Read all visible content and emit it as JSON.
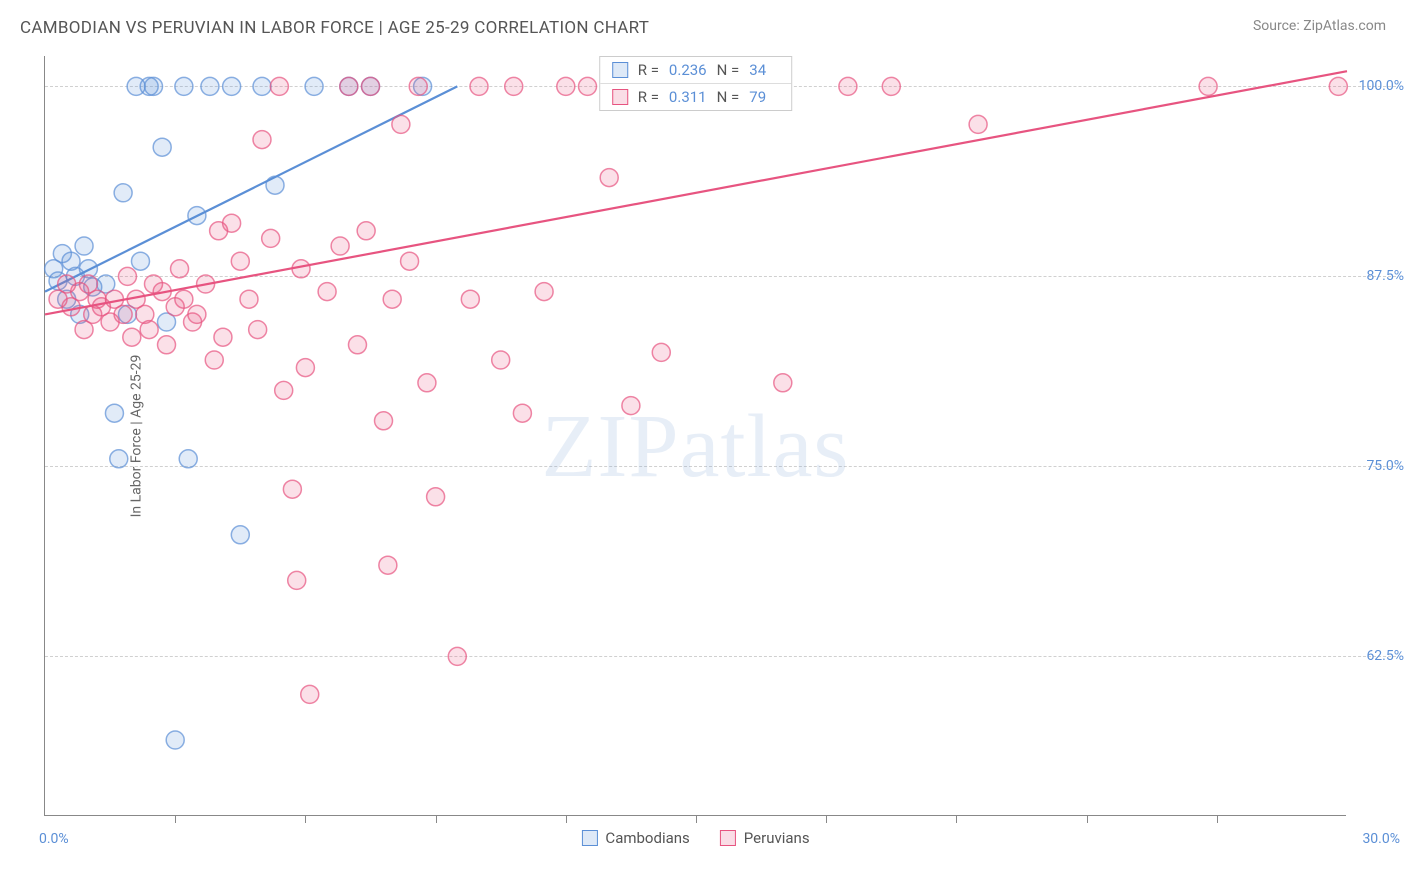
{
  "title": "CAMBODIAN VS PERUVIAN IN LABOR FORCE | AGE 25-29 CORRELATION CHART",
  "source_label": "Source: ZipAtlas.com",
  "y_axis_label": "In Labor Force | Age 25-29",
  "watermark_text": "ZIPatlas",
  "chart": {
    "type": "scatter",
    "background_color": "#ffffff",
    "grid_color": "#d0d0d0",
    "axis_color": "#888888",
    "xlim": [
      0,
      30
    ],
    "ylim": [
      52,
      102
    ],
    "x_ticks": [
      3,
      6,
      9,
      12,
      15,
      18,
      21,
      24,
      27
    ],
    "y_ticks": [
      62.5,
      75.0,
      87.5,
      100.0
    ],
    "y_tick_labels": [
      "62.5%",
      "75.0%",
      "87.5%",
      "100.0%"
    ],
    "x_min_label": "0.0%",
    "x_max_label": "30.0%",
    "label_color": "#5b8fd6",
    "label_fontsize": 14,
    "marker_radius": 9,
    "marker_fill_opacity": 0.18,
    "marker_stroke_width": 1.5,
    "regression_line_width": 2.2
  },
  "series": [
    {
      "name": "Cambodians",
      "color": "#5b8fd6",
      "R": "0.236",
      "N": "34",
      "regression": {
        "x1": 0,
        "y1": 86.5,
        "x2": 9.5,
        "y2": 100.0
      },
      "points": [
        [
          0.2,
          88.0
        ],
        [
          0.3,
          87.2
        ],
        [
          0.4,
          89.0
        ],
        [
          0.5,
          86.0
        ],
        [
          0.6,
          88.5
        ],
        [
          0.7,
          87.5
        ],
        [
          0.8,
          85.0
        ],
        [
          0.9,
          89.5
        ],
        [
          1.0,
          88.0
        ],
        [
          1.1,
          86.8
        ],
        [
          1.4,
          87.0
        ],
        [
          1.6,
          78.5
        ],
        [
          1.7,
          75.5
        ],
        [
          1.8,
          93.0
        ],
        [
          1.9,
          85.0
        ],
        [
          2.1,
          100.0
        ],
        [
          2.2,
          88.5
        ],
        [
          2.4,
          100.0
        ],
        [
          2.5,
          100.0
        ],
        [
          2.7,
          96.0
        ],
        [
          2.8,
          84.5
        ],
        [
          3.0,
          57.0
        ],
        [
          3.2,
          100.0
        ],
        [
          3.3,
          75.5
        ],
        [
          3.5,
          91.5
        ],
        [
          3.8,
          100.0
        ],
        [
          4.3,
          100.0
        ],
        [
          4.5,
          70.5
        ],
        [
          5.0,
          100.0
        ],
        [
          5.3,
          93.5
        ],
        [
          6.2,
          100.0
        ],
        [
          7.0,
          100.0
        ],
        [
          7.5,
          100.0
        ],
        [
          8.7,
          100.0
        ]
      ]
    },
    {
      "name": "Peruvians",
      "color": "#e75480",
      "R": "0.311",
      "N": "79",
      "regression": {
        "x1": 0,
        "y1": 85.0,
        "x2": 30.0,
        "y2": 101.0
      },
      "points": [
        [
          0.3,
          86.0
        ],
        [
          0.5,
          87.0
        ],
        [
          0.6,
          85.5
        ],
        [
          0.8,
          86.5
        ],
        [
          0.9,
          84.0
        ],
        [
          1.0,
          87.0
        ],
        [
          1.1,
          85.0
        ],
        [
          1.2,
          86.0
        ],
        [
          1.3,
          85.5
        ],
        [
          1.5,
          84.5
        ],
        [
          1.6,
          86.0
        ],
        [
          1.8,
          85.0
        ],
        [
          1.9,
          87.5
        ],
        [
          2.0,
          83.5
        ],
        [
          2.1,
          86.0
        ],
        [
          2.3,
          85.0
        ],
        [
          2.4,
          84.0
        ],
        [
          2.5,
          87.0
        ],
        [
          2.7,
          86.5
        ],
        [
          2.8,
          83.0
        ],
        [
          3.0,
          85.5
        ],
        [
          3.1,
          88.0
        ],
        [
          3.2,
          86.0
        ],
        [
          3.4,
          84.5
        ],
        [
          3.5,
          85.0
        ],
        [
          3.7,
          87.0
        ],
        [
          3.9,
          82.0
        ],
        [
          4.0,
          90.5
        ],
        [
          4.1,
          83.5
        ],
        [
          4.3,
          91.0
        ],
        [
          4.5,
          88.5
        ],
        [
          4.7,
          86.0
        ],
        [
          4.9,
          84.0
        ],
        [
          5.0,
          96.5
        ],
        [
          5.2,
          90.0
        ],
        [
          5.4,
          100.0
        ],
        [
          5.5,
          80.0
        ],
        [
          5.7,
          73.5
        ],
        [
          5.8,
          67.5
        ],
        [
          5.9,
          88.0
        ],
        [
          6.0,
          81.5
        ],
        [
          6.1,
          60.0
        ],
        [
          6.5,
          86.5
        ],
        [
          6.8,
          89.5
        ],
        [
          7.0,
          100.0
        ],
        [
          7.2,
          83.0
        ],
        [
          7.4,
          90.5
        ],
        [
          7.5,
          100.0
        ],
        [
          7.8,
          78.0
        ],
        [
          7.9,
          68.5
        ],
        [
          8.0,
          86.0
        ],
        [
          8.2,
          97.5
        ],
        [
          8.4,
          88.5
        ],
        [
          8.6,
          100.0
        ],
        [
          8.8,
          80.5
        ],
        [
          9.0,
          73.0
        ],
        [
          9.5,
          62.5
        ],
        [
          9.8,
          86.0
        ],
        [
          10.0,
          100.0
        ],
        [
          10.5,
          82.0
        ],
        [
          10.8,
          100.0
        ],
        [
          11.0,
          78.5
        ],
        [
          11.5,
          86.5
        ],
        [
          12.0,
          100.0
        ],
        [
          12.5,
          100.0
        ],
        [
          13.0,
          94.0
        ],
        [
          13.5,
          79.0
        ],
        [
          14.0,
          100.0
        ],
        [
          14.2,
          82.5
        ],
        [
          14.5,
          100.0
        ],
        [
          15.0,
          100.0
        ],
        [
          15.5,
          100.0
        ],
        [
          16.2,
          100.0
        ],
        [
          17.0,
          80.5
        ],
        [
          18.5,
          100.0
        ],
        [
          19.5,
          100.0
        ],
        [
          21.5,
          97.5
        ],
        [
          26.8,
          100.0
        ],
        [
          29.8,
          100.0
        ]
      ]
    }
  ],
  "legend_bottom": {
    "items": [
      "Cambodians",
      "Peruvians"
    ]
  },
  "stats_labels": {
    "R": "R =",
    "N": "N ="
  }
}
